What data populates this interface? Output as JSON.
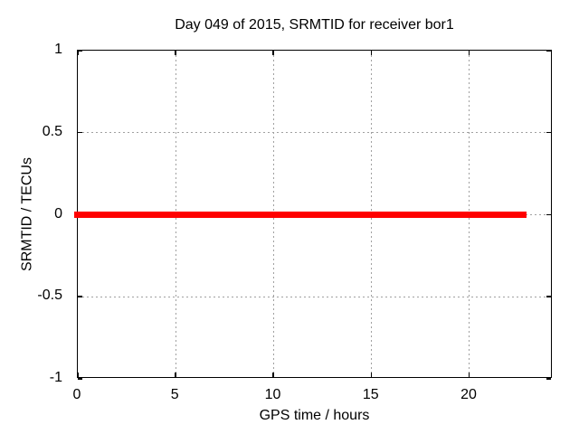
{
  "chart_data": {
    "type": "line",
    "title": "Day 049 of 2015, SRMTID for receiver bor1",
    "xlabel": "GPS time / hours",
    "ylabel": "SRMTID / TECUs",
    "xlim": [
      0,
      24.25
    ],
    "ylim": [
      -1,
      1
    ],
    "xticks": [
      0,
      5,
      10,
      15,
      20
    ],
    "yticks": [
      -1,
      -0.5,
      0,
      0.5,
      1
    ],
    "grid": true,
    "legend_position": "none",
    "series": [
      {
        "name": "SRMTID",
        "color": "#ff0000",
        "style": "thick solid line",
        "x": [
          0,
          22.9
        ],
        "y": [
          0,
          0
        ]
      }
    ]
  },
  "colors": {
    "series": "#ff0000",
    "grid": "#a0a0a0",
    "axis": "#000000",
    "text": "#000000",
    "background": "#ffffff"
  }
}
